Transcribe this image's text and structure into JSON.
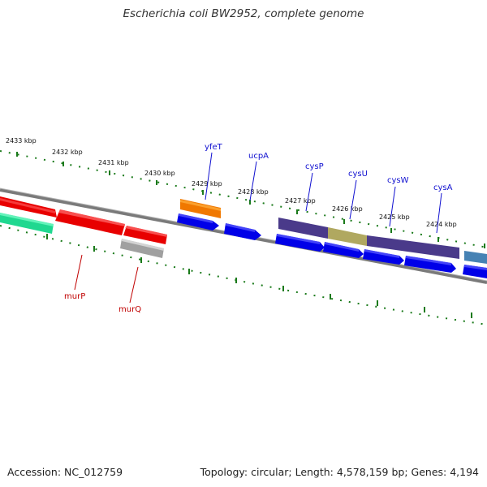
{
  "title": "Escherichia coli BW2952, complete genome",
  "accession_text": "Accession: NC_012759",
  "summary_text": "Topology: circular; Length: 4,578,159 bp; Genes: 4,194",
  "colors": {
    "axis": "#808080",
    "ticks": "#1a7a1a",
    "gene_label_forward": "#1010d0",
    "gene_label_reverse": "#c00000"
  },
  "kbp_labels": [
    "2433 kbp",
    "2432 kbp",
    "2431 kbp",
    "2430 kbp",
    "2429 kbp",
    "2428 kbp",
    "2427 kbp",
    "2426 kbp",
    "2425 kbp",
    "2424 kbp"
  ],
  "genes": [
    {
      "name": "yfeT",
      "strand": "forward"
    },
    {
      "name": "ucpA",
      "strand": "forward"
    },
    {
      "name": "cysP",
      "strand": "forward"
    },
    {
      "name": "cysU",
      "strand": "forward"
    },
    {
      "name": "cysW",
      "strand": "forward"
    },
    {
      "name": "cysA",
      "strand": "forward"
    },
    {
      "name": "murP",
      "strand": "reverse"
    },
    {
      "name": "murQ",
      "strand": "reverse"
    }
  ]
}
